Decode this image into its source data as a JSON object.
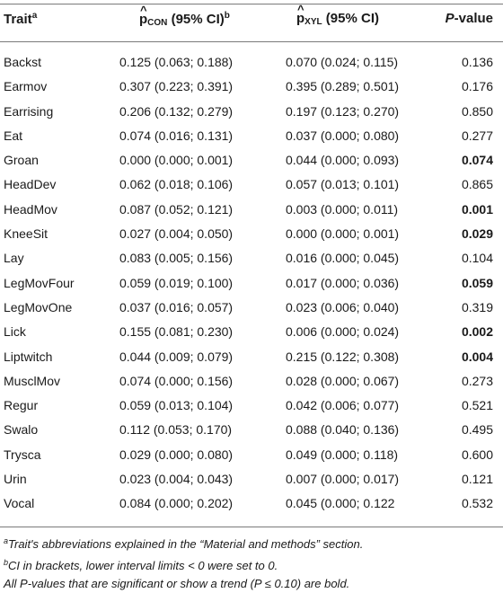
{
  "header": {
    "trait_label": "Trait",
    "trait_sup": "a",
    "con_p": "p",
    "con_sub": "CON",
    "con_ci": "(95% CI)",
    "con_sup": "b",
    "xyl_p": "p",
    "xyl_sub": "XYL",
    "xyl_ci": "(95% CI)",
    "pvalue_label": "P",
    "pvalue_suffix": "-value"
  },
  "rows": [
    {
      "trait": "Backst",
      "con": "0.125 (0.063; 0.188)",
      "xyl": "0.070 (0.024; 0.115)",
      "p": "0.136",
      "bold": false
    },
    {
      "trait": "Earmov",
      "con": "0.307 (0.223; 0.391)",
      "xyl": "0.395 (0.289; 0.501)",
      "p": "0.176",
      "bold": false
    },
    {
      "trait": "Earrising",
      "con": "0.206 (0.132; 0.279)",
      "xyl": "0.197 (0.123; 0.270)",
      "p": "0.850",
      "bold": false
    },
    {
      "trait": "Eat",
      "con": "0.074 (0.016; 0.131)",
      "xyl": "0.037 (0.000; 0.080)",
      "p": "0.277",
      "bold": false
    },
    {
      "trait": "Groan",
      "con": "0.000 (0.000; 0.001)",
      "xyl": "0.044 (0.000; 0.093)",
      "p": "0.074",
      "bold": true
    },
    {
      "trait": "HeadDev",
      "con": "0.062 (0.018; 0.106)",
      "xyl": "0.057 (0.013; 0.101)",
      "p": "0.865",
      "bold": false
    },
    {
      "trait": "HeadMov",
      "con": "0.087 (0.052; 0.121)",
      "xyl": "0.003 (0.000; 0.011)",
      "p": "0.001",
      "bold": true
    },
    {
      "trait": "KneeSit",
      "con": "0.027 (0.004; 0.050)",
      "xyl": "0.000 (0.000; 0.001)",
      "p": "0.029",
      "bold": true
    },
    {
      "trait": "Lay",
      "con": "0.083 (0.005; 0.156)",
      "xyl": "0.016 (0.000; 0.045)",
      "p": "0.104",
      "bold": false
    },
    {
      "trait": "LegMovFour",
      "con": "0.059 (0.019; 0.100)",
      "xyl": "0.017 (0.000; 0.036)",
      "p": "0.059",
      "bold": true
    },
    {
      "trait": "LegMovOne",
      "con": "0.037 (0.016; 0.057)",
      "xyl": "0.023 (0.006; 0.040)",
      "p": "0.319",
      "bold": false
    },
    {
      "trait": "Lick",
      "con": "0.155 (0.081; 0.230)",
      "xyl": "0.006 (0.000; 0.024)",
      "p": "0.002",
      "bold": true
    },
    {
      "trait": "Liptwitch",
      "con": "0.044 (0.009; 0.079)",
      "xyl": "0.215 (0.122; 0.308)",
      "p": "0.004",
      "bold": true
    },
    {
      "trait": "MusclMov",
      "con": "0.074 (0.000; 0.156)",
      "xyl": "0.028 (0.000; 0.067)",
      "p": "0.273",
      "bold": false
    },
    {
      "trait": "Regur",
      "con": "0.059 (0.013; 0.104)",
      "xyl": "0.042 (0.006; 0.077)",
      "p": "0.521",
      "bold": false
    },
    {
      "trait": "Swalo",
      "con": "0.112 (0.053; 0.170)",
      "xyl": "0.088 (0.040; 0.136)",
      "p": "0.495",
      "bold": false
    },
    {
      "trait": "Trysca",
      "con": "0.029 (0.000; 0.080)",
      "xyl": "0.049 (0.000; 0.118)",
      "p": "0.600",
      "bold": false
    },
    {
      "trait": "Urin",
      "con": "0.023 (0.004; 0.043)",
      "xyl": "0.007 (0.000; 0.017)",
      "p": "0.121",
      "bold": false
    },
    {
      "trait": "Vocal",
      "con": "0.084 (0.000; 0.202)",
      "xyl": "0.045 (0.000; 0.122",
      "p": "0.532",
      "bold": false
    }
  ],
  "footnotes": [
    {
      "sup": "a",
      "text": "Trait's abbreviations explained in the “Material and methods” section."
    },
    {
      "sup": "b",
      "text": "CI in brackets, lower interval limits < 0 were set to 0."
    },
    {
      "sup": "",
      "text": "All P-values that are significant or show a trend (P ≤ 0.10) are bold."
    }
  ]
}
